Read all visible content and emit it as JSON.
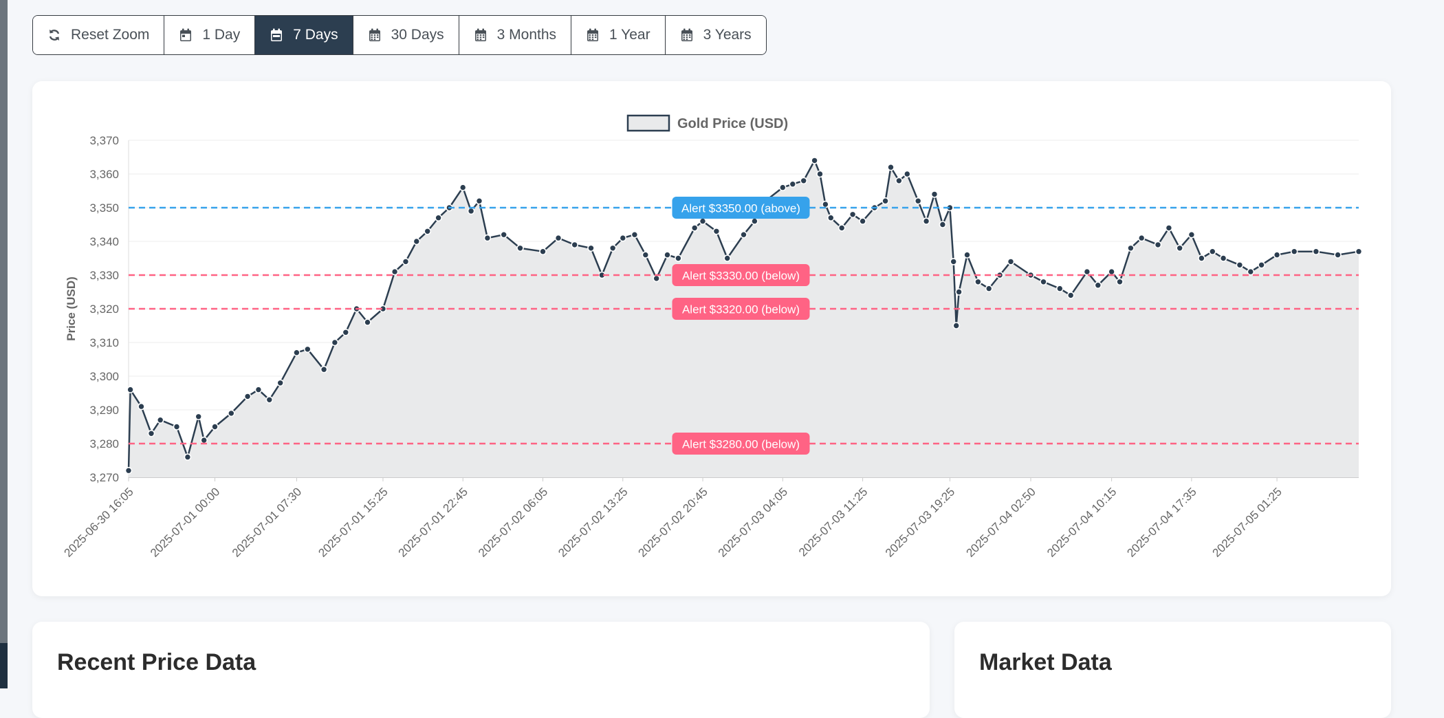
{
  "toolbar": {
    "buttons": [
      {
        "label": "Reset Zoom",
        "icon": "refresh-icon",
        "active": false
      },
      {
        "label": "1 Day",
        "icon": "calendar-day-icon",
        "active": false
      },
      {
        "label": "7 Days",
        "icon": "calendar-week-icon",
        "active": true
      },
      {
        "label": "30 Days",
        "icon": "calendar-icon",
        "active": false
      },
      {
        "label": "3 Months",
        "icon": "calendar-icon",
        "active": false
      },
      {
        "label": "1 Year",
        "icon": "calendar-icon",
        "active": false
      },
      {
        "label": "3 Years",
        "icon": "calendar-icon",
        "active": false
      }
    ]
  },
  "sections": {
    "recent_title": "Recent Price Data",
    "market_title": "Market Data"
  },
  "colors": {
    "line": "#2c3e50",
    "fill": "#e9eaeb",
    "alert_above": "#36a2eb",
    "alert_below": "#ff6384"
  },
  "chart_data": {
    "type": "line",
    "title": "",
    "legend": {
      "label": "Gold Price (USD)",
      "position": "top-center"
    },
    "xlabel": "",
    "ylabel": "Price (USD)",
    "ylim": [
      3270,
      3370
    ],
    "yticks": [
      3370,
      3360,
      3350,
      3340,
      3330,
      3320,
      3310,
      3300,
      3290,
      3280,
      3270
    ],
    "ytick_labels": [
      "3,370",
      "3,360",
      "3,350",
      "3,340",
      "3,330",
      "3,320",
      "3,310",
      "3,300",
      "3,290",
      "3,280",
      "3,270"
    ],
    "xlim": [
      "2025-06-30 16:05",
      "2025-07-05 08:55"
    ],
    "xtick_labels": [
      "2025-06-30 16:05",
      "2025-07-01 00:00",
      "2025-07-01 07:30",
      "2025-07-01 15:25",
      "2025-07-01 22:45",
      "2025-07-02 06:05",
      "2025-07-02 13:25",
      "2025-07-02 20:45",
      "2025-07-03 04:05",
      "2025-07-03 11:25",
      "2025-07-03 19:25",
      "2025-07-04 02:50",
      "2025-07-04 10:15",
      "2025-07-04 17:35",
      "2025-07-05 01:25"
    ],
    "grid": true,
    "series": [
      {
        "name": "Gold Price (USD)",
        "points": [
          [
            "2025-06-30 16:05",
            3272
          ],
          [
            "2025-06-30 16:15",
            3296
          ],
          [
            "2025-06-30 17:15",
            3291
          ],
          [
            "2025-06-30 18:10",
            3283
          ],
          [
            "2025-06-30 19:00",
            3287
          ],
          [
            "2025-06-30 20:30",
            3285
          ],
          [
            "2025-06-30 21:30",
            3276
          ],
          [
            "2025-06-30 22:30",
            3288
          ],
          [
            "2025-06-30 23:00",
            3281
          ],
          [
            "2025-07-01 00:00",
            3285
          ],
          [
            "2025-07-01 01:30",
            3289
          ],
          [
            "2025-07-01 03:00",
            3294
          ],
          [
            "2025-07-01 04:00",
            3296
          ],
          [
            "2025-07-01 05:00",
            3293
          ],
          [
            "2025-07-01 06:00",
            3298
          ],
          [
            "2025-07-01 07:30",
            3307
          ],
          [
            "2025-07-01 08:30",
            3308
          ],
          [
            "2025-07-01 10:00",
            3302
          ],
          [
            "2025-07-01 11:00",
            3310
          ],
          [
            "2025-07-01 12:00",
            3313
          ],
          [
            "2025-07-01 13:00",
            3320
          ],
          [
            "2025-07-01 14:00",
            3316
          ],
          [
            "2025-07-01 15:25",
            3320
          ],
          [
            "2025-07-01 16:30",
            3331
          ],
          [
            "2025-07-01 17:30",
            3334
          ],
          [
            "2025-07-01 18:30",
            3340
          ],
          [
            "2025-07-01 19:30",
            3343
          ],
          [
            "2025-07-01 20:30",
            3347
          ],
          [
            "2025-07-01 21:30",
            3350
          ],
          [
            "2025-07-01 22:45",
            3356
          ],
          [
            "2025-07-01 23:30",
            3349
          ],
          [
            "2025-07-02 00:15",
            3352
          ],
          [
            "2025-07-02 01:00",
            3341
          ],
          [
            "2025-07-02 02:30",
            3342
          ],
          [
            "2025-07-02 04:00",
            3338
          ],
          [
            "2025-07-02 06:05",
            3337
          ],
          [
            "2025-07-02 07:30",
            3341
          ],
          [
            "2025-07-02 09:00",
            3339
          ],
          [
            "2025-07-02 10:30",
            3338
          ],
          [
            "2025-07-02 11:30",
            3330
          ],
          [
            "2025-07-02 12:30",
            3338
          ],
          [
            "2025-07-02 13:25",
            3341
          ],
          [
            "2025-07-02 14:30",
            3342
          ],
          [
            "2025-07-02 15:30",
            3336
          ],
          [
            "2025-07-02 16:30",
            3329
          ],
          [
            "2025-07-02 17:30",
            3336
          ],
          [
            "2025-07-02 18:30",
            3335
          ],
          [
            "2025-07-02 20:00",
            3344
          ],
          [
            "2025-07-02 20:45",
            3346
          ],
          [
            "2025-07-02 22:00",
            3343
          ],
          [
            "2025-07-02 23:00",
            3335
          ],
          [
            "2025-07-03 00:30",
            3342
          ],
          [
            "2025-07-03 01:30",
            3346
          ],
          [
            "2025-07-03 02:30",
            3352
          ],
          [
            "2025-07-03 04:05",
            3356
          ],
          [
            "2025-07-03 05:00",
            3357
          ],
          [
            "2025-07-03 06:00",
            3358
          ],
          [
            "2025-07-03 07:00",
            3364
          ],
          [
            "2025-07-03 07:30",
            3360
          ],
          [
            "2025-07-03 08:00",
            3351
          ],
          [
            "2025-07-03 08:30",
            3347
          ],
          [
            "2025-07-03 09:30",
            3344
          ],
          [
            "2025-07-03 10:30",
            3348
          ],
          [
            "2025-07-03 11:25",
            3346
          ],
          [
            "2025-07-03 12:30",
            3350
          ],
          [
            "2025-07-03 13:30",
            3352
          ],
          [
            "2025-07-03 14:00",
            3362
          ],
          [
            "2025-07-03 14:45",
            3358
          ],
          [
            "2025-07-03 15:30",
            3360
          ],
          [
            "2025-07-03 16:30",
            3352
          ],
          [
            "2025-07-03 17:15",
            3346
          ],
          [
            "2025-07-03 18:00",
            3354
          ],
          [
            "2025-07-03 18:45",
            3345
          ],
          [
            "2025-07-03 19:25",
            3350
          ],
          [
            "2025-07-03 19:45",
            3334
          ],
          [
            "2025-07-03 20:00",
            3315
          ],
          [
            "2025-07-03 20:15",
            3325
          ],
          [
            "2025-07-03 21:00",
            3336
          ],
          [
            "2025-07-03 22:00",
            3328
          ],
          [
            "2025-07-03 23:00",
            3326
          ],
          [
            "2025-07-04 00:00",
            3330
          ],
          [
            "2025-07-04 01:00",
            3334
          ],
          [
            "2025-07-04 02:50",
            3330
          ],
          [
            "2025-07-04 04:00",
            3328
          ],
          [
            "2025-07-04 05:30",
            3326
          ],
          [
            "2025-07-04 06:30",
            3324
          ],
          [
            "2025-07-04 08:00",
            3331
          ],
          [
            "2025-07-04 09:00",
            3327
          ],
          [
            "2025-07-04 10:15",
            3331
          ],
          [
            "2025-07-04 11:00",
            3328
          ],
          [
            "2025-07-04 12:00",
            3338
          ],
          [
            "2025-07-04 13:00",
            3341
          ],
          [
            "2025-07-04 14:30",
            3339
          ],
          [
            "2025-07-04 15:30",
            3344
          ],
          [
            "2025-07-04 16:30",
            3338
          ],
          [
            "2025-07-04 17:35",
            3342
          ],
          [
            "2025-07-04 18:30",
            3335
          ],
          [
            "2025-07-04 19:30",
            3337
          ],
          [
            "2025-07-04 20:30",
            3335
          ],
          [
            "2025-07-04 22:00",
            3333
          ],
          [
            "2025-07-04 23:00",
            3331
          ],
          [
            "2025-07-05 00:00",
            3333
          ],
          [
            "2025-07-05 01:25",
            3336
          ],
          [
            "2025-07-05 03:00",
            3337
          ],
          [
            "2025-07-05 05:00",
            3337
          ],
          [
            "2025-07-05 07:00",
            3336
          ],
          [
            "2025-07-05 08:55",
            3337
          ]
        ]
      }
    ],
    "thresholds": [
      {
        "value": 3350,
        "label": "Alert $3350.00 (above)",
        "direction": "above"
      },
      {
        "value": 3330,
        "label": "Alert $3330.00 (below)",
        "direction": "below"
      },
      {
        "value": 3320,
        "label": "Alert $3320.00 (below)",
        "direction": "below"
      },
      {
        "value": 3280,
        "label": "Alert $3280.00 (below)",
        "direction": "below"
      }
    ]
  }
}
